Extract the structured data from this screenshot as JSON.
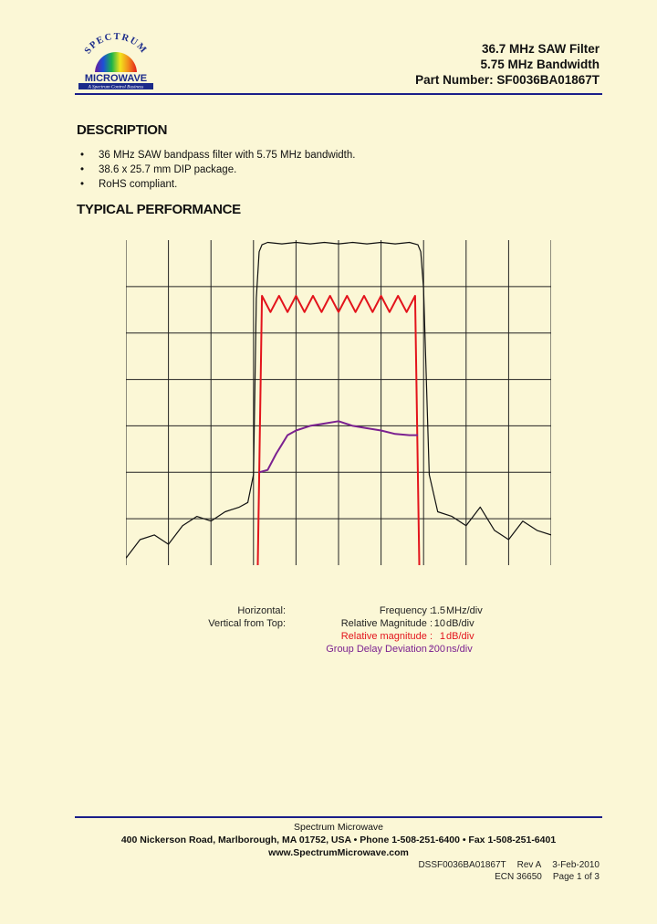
{
  "header": {
    "logo": {
      "brand_top": "SPECTRUM",
      "brand_main": "MICROWAVE",
      "tagline": "A Spectrum Control Business"
    },
    "title_lines": [
      "36.7 MHz SAW Filter",
      "5.75 MHz Bandwidth",
      "Part Number: SF0036BA01867T"
    ]
  },
  "description": {
    "heading": "DESCRIPTION",
    "bullets": [
      "36 MHz SAW bandpass filter with 5.75 MHz bandwidth.",
      "38.6 x 25.7 mm DIP package.",
      "RoHS compliant."
    ]
  },
  "performance": {
    "heading": "TYPICAL PERFORMANCE"
  },
  "chart_data": {
    "type": "line",
    "title": "",
    "xlabel": "",
    "ylabel": "",
    "grid": true,
    "grid_divisions": {
      "x": 10,
      "y": 7
    },
    "center_frequency_mhz": 36.7,
    "colors": {
      "magnitude": "#111111",
      "passband": "#e3141c",
      "group_delay": "#7b2190",
      "grid": "#222222"
    },
    "x_mhz_offset": [
      -7.5,
      -7.0,
      -6.5,
      -6.0,
      -5.5,
      -5.0,
      -4.5,
      -4.0,
      -3.5,
      -3.2,
      -3.0,
      -2.9,
      -2.8,
      -2.7,
      -2.5,
      -2.0,
      -1.5,
      -1.0,
      -0.5,
      0.0,
      0.5,
      1.0,
      1.5,
      2.0,
      2.5,
      2.8,
      2.9,
      3.0,
      3.2,
      3.5,
      4.0,
      4.5,
      5.0,
      5.5,
      6.0,
      6.5,
      7.0,
      7.5
    ],
    "series": [
      {
        "key": "magnitude",
        "units_per_div": 10,
        "unit": "dB",
        "values_db_rel": [
          -68,
          -64,
          -63,
          -65,
          -61,
          -59,
          -60,
          -58,
          -57,
          -56,
          -50,
          -12,
          -2,
          -0.5,
          0,
          -0.3,
          0,
          -0.3,
          0,
          -0.3,
          0,
          -0.3,
          0,
          -0.3,
          0,
          -0.5,
          -2,
          -10,
          -50,
          -58,
          -59,
          -61,
          -57,
          -62,
          -64,
          -60,
          -62,
          -63
        ]
      },
      {
        "key": "passband",
        "units_per_div": 1,
        "unit": "dB",
        "x_mhz_offset": [
          -2.85,
          -2.7,
          -2.4,
          -2.1,
          -1.8,
          -1.5,
          -1.2,
          -0.9,
          -0.6,
          -0.3,
          0.0,
          0.3,
          0.6,
          0.9,
          1.2,
          1.5,
          1.8,
          2.1,
          2.4,
          2.7,
          2.85
        ],
        "values_db_rel": [
          -6.0,
          -0.1,
          -0.45,
          -0.1,
          -0.45,
          -0.1,
          -0.45,
          -0.1,
          -0.45,
          -0.1,
          -0.45,
          -0.1,
          -0.45,
          -0.1,
          -0.45,
          -0.1,
          -0.45,
          -0.1,
          -0.45,
          -0.1,
          -6.0
        ]
      },
      {
        "key": "group_delay",
        "units_per_div": 200,
        "unit": "ns",
        "x_mhz_offset": [
          -2.8,
          -2.5,
          -2.2,
          -2.0,
          -1.8,
          -1.5,
          -1.0,
          -0.5,
          0.0,
          0.5,
          1.0,
          1.5,
          2.0,
          2.5,
          2.8
        ],
        "values_ns_rel": [
          -200,
          -190,
          -120,
          -80,
          -40,
          -20,
          0,
          10,
          20,
          0,
          -10,
          -20,
          -35,
          -40,
          -40
        ]
      }
    ]
  },
  "legend": {
    "rows": [
      {
        "left": "Horizontal:",
        "name": "Frequency :",
        "value": "1.5",
        "unit": "MHz/div",
        "color": "#222222"
      },
      {
        "left": "Vertical from Top:",
        "name": "Relative Magnitude :",
        "value": "10",
        "unit": "dB/div",
        "color": "#222222"
      },
      {
        "left": "",
        "name": "Relative magnitude :",
        "value": "1",
        "unit": "dB/div",
        "color": "#e3141c"
      },
      {
        "left": "",
        "name": "Group Delay Deviation :",
        "value": "200",
        "unit": "ns/div",
        "color": "#7b2190"
      }
    ]
  },
  "footer": {
    "company": "Spectrum Microwave",
    "address": "400 Nickerson Road, Marlborough, MA 01752, USA  •  Phone 1-508-251-6400  •  Fax 1-508-251-6401",
    "website": "www.SpectrumMicrowave.com",
    "doc_number": "DSSF0036BA01867T",
    "revision": "Rev A",
    "date": "3-Feb-2010",
    "ecn": "ECN 36650",
    "page": "Page 1 of 3"
  }
}
